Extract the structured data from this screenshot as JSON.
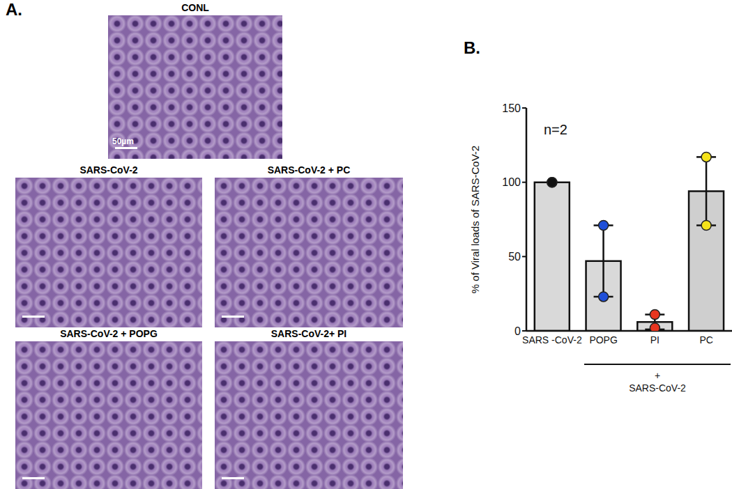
{
  "panel_labels": [
    "A.",
    "B."
  ],
  "images": [
    {
      "title": "CONL",
      "scale_bar": "50µm"
    },
    {
      "title": "SARS-CoV-2"
    },
    {
      "title": "SARS-CoV-2 + PC"
    },
    {
      "title": "SARS-CoV-2 + POPG"
    },
    {
      "title": "SARS-CoV-2+ PI"
    }
  ],
  "chart_data": {
    "type": "bar",
    "y_label": "% of Viral loads of SARS-CoV-2",
    "categories": [
      "SARS -CoV-2",
      "POPG",
      "PI",
      "PC"
    ],
    "values": [
      100,
      47,
      6,
      94
    ],
    "error": [
      0,
      24,
      5,
      23
    ],
    "points": [
      [
        100,
        100
      ],
      [
        71,
        23
      ],
      [
        11,
        2
      ],
      [
        117,
        71
      ]
    ],
    "point_colors": [
      "#111111",
      "#1f4fd8",
      "#e8351f",
      "#f5e31a"
    ],
    "colors": [
      "#d9d9d9",
      "#d9d9d9",
      "#d9d9d9",
      "#cfcfcf"
    ],
    "ylim": [
      0,
      150
    ],
    "yticks": [
      0,
      50,
      100,
      150
    ],
    "annotations": [
      "n=2",
      "+",
      "SARS-CoV-2"
    ],
    "grid": false
  }
}
